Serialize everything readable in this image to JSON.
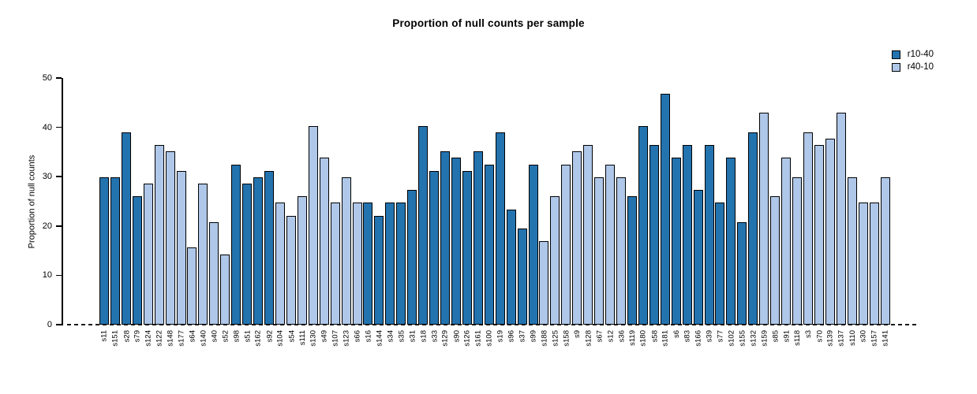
{
  "chart_data": {
    "type": "bar",
    "title": "Proportion of null counts per sample",
    "xlabel": "",
    "ylabel": "Proportion of null counts",
    "ylim": [
      0,
      50
    ],
    "yticks": [
      0,
      10,
      20,
      30,
      40,
      50
    ],
    "grid": false,
    "legend_position": "top-right",
    "zero_line_style": "dashed",
    "series": [
      {
        "name": "r10-40",
        "color": "#2373AF"
      },
      {
        "name": "r40-10",
        "color": "#AFC7E8"
      }
    ],
    "bars": [
      {
        "sample": "s11",
        "value": 29.9,
        "series": "r10-40"
      },
      {
        "sample": "s151",
        "value": 29.9,
        "series": "r10-40"
      },
      {
        "sample": "s28",
        "value": 39.0,
        "series": "r10-40"
      },
      {
        "sample": "s79",
        "value": 26.0,
        "series": "r10-40"
      },
      {
        "sample": "s124",
        "value": 28.6,
        "series": "r40-10"
      },
      {
        "sample": "s122",
        "value": 36.4,
        "series": "r40-10"
      },
      {
        "sample": "s148",
        "value": 35.1,
        "series": "r40-10"
      },
      {
        "sample": "s177",
        "value": 31.2,
        "series": "r40-10"
      },
      {
        "sample": "s64",
        "value": 15.6,
        "series": "r40-10"
      },
      {
        "sample": "s140",
        "value": 28.6,
        "series": "r40-10"
      },
      {
        "sample": "s40",
        "value": 20.8,
        "series": "r40-10"
      },
      {
        "sample": "s52",
        "value": 14.3,
        "series": "r40-10"
      },
      {
        "sample": "s98",
        "value": 32.5,
        "series": "r10-40"
      },
      {
        "sample": "s51",
        "value": 28.6,
        "series": "r10-40"
      },
      {
        "sample": "s162",
        "value": 29.9,
        "series": "r10-40"
      },
      {
        "sample": "s92",
        "value": 31.2,
        "series": "r10-40"
      },
      {
        "sample": "s104",
        "value": 24.7,
        "series": "r40-10"
      },
      {
        "sample": "s54",
        "value": 22.1,
        "series": "r40-10"
      },
      {
        "sample": "s111",
        "value": 26.0,
        "series": "r40-10"
      },
      {
        "sample": "s130",
        "value": 40.3,
        "series": "r40-10"
      },
      {
        "sample": "s49",
        "value": 33.8,
        "series": "r40-10"
      },
      {
        "sample": "s107",
        "value": 24.7,
        "series": "r40-10"
      },
      {
        "sample": "s123",
        "value": 29.9,
        "series": "r40-10"
      },
      {
        "sample": "s66",
        "value": 24.7,
        "series": "r40-10"
      },
      {
        "sample": "s16",
        "value": 24.7,
        "series": "r10-40"
      },
      {
        "sample": "s144",
        "value": 22.1,
        "series": "r10-40"
      },
      {
        "sample": "s34",
        "value": 24.7,
        "series": "r10-40"
      },
      {
        "sample": "s35",
        "value": 24.7,
        "series": "r10-40"
      },
      {
        "sample": "s31",
        "value": 27.3,
        "series": "r10-40"
      },
      {
        "sample": "s18",
        "value": 40.3,
        "series": "r10-40"
      },
      {
        "sample": "s33",
        "value": 31.2,
        "series": "r10-40"
      },
      {
        "sample": "s129",
        "value": 35.1,
        "series": "r10-40"
      },
      {
        "sample": "s90",
        "value": 33.8,
        "series": "r10-40"
      },
      {
        "sample": "s126",
        "value": 31.2,
        "series": "r10-40"
      },
      {
        "sample": "s161",
        "value": 35.1,
        "series": "r10-40"
      },
      {
        "sample": "s100",
        "value": 32.5,
        "series": "r10-40"
      },
      {
        "sample": "s19",
        "value": 39.0,
        "series": "r10-40"
      },
      {
        "sample": "s96",
        "value": 23.4,
        "series": "r10-40"
      },
      {
        "sample": "s37",
        "value": 19.5,
        "series": "r10-40"
      },
      {
        "sample": "s99",
        "value": 32.5,
        "series": "r10-40"
      },
      {
        "sample": "s188",
        "value": 16.9,
        "series": "r40-10"
      },
      {
        "sample": "s125",
        "value": 26.0,
        "series": "r40-10"
      },
      {
        "sample": "s158",
        "value": 32.5,
        "series": "r40-10"
      },
      {
        "sample": "s9",
        "value": 35.1,
        "series": "r40-10"
      },
      {
        "sample": "s128",
        "value": 36.4,
        "series": "r40-10"
      },
      {
        "sample": "s67",
        "value": 29.9,
        "series": "r40-10"
      },
      {
        "sample": "s12",
        "value": 32.5,
        "series": "r40-10"
      },
      {
        "sample": "s36",
        "value": 29.9,
        "series": "r40-10"
      },
      {
        "sample": "s119",
        "value": 26.0,
        "series": "r10-40"
      },
      {
        "sample": "s180",
        "value": 40.3,
        "series": "r10-40"
      },
      {
        "sample": "s58",
        "value": 36.4,
        "series": "r10-40"
      },
      {
        "sample": "s181",
        "value": 46.8,
        "series": "r10-40"
      },
      {
        "sample": "s6",
        "value": 33.8,
        "series": "r10-40"
      },
      {
        "sample": "s83",
        "value": 36.4,
        "series": "r10-40"
      },
      {
        "sample": "s166",
        "value": 27.3,
        "series": "r10-40"
      },
      {
        "sample": "s39",
        "value": 36.4,
        "series": "r10-40"
      },
      {
        "sample": "s77",
        "value": 24.7,
        "series": "r10-40"
      },
      {
        "sample": "s102",
        "value": 33.8,
        "series": "r10-40"
      },
      {
        "sample": "s155",
        "value": 20.8,
        "series": "r10-40"
      },
      {
        "sample": "s132",
        "value": 39.0,
        "series": "r10-40"
      },
      {
        "sample": "s159",
        "value": 42.9,
        "series": "r40-10"
      },
      {
        "sample": "s85",
        "value": 26.0,
        "series": "r40-10"
      },
      {
        "sample": "s91",
        "value": 33.8,
        "series": "r40-10"
      },
      {
        "sample": "s118",
        "value": 29.9,
        "series": "r40-10"
      },
      {
        "sample": "s3",
        "value": 39.0,
        "series": "r40-10"
      },
      {
        "sample": "s70",
        "value": 36.4,
        "series": "r40-10"
      },
      {
        "sample": "s139",
        "value": 37.7,
        "series": "r40-10"
      },
      {
        "sample": "s137",
        "value": 42.9,
        "series": "r40-10"
      },
      {
        "sample": "s110",
        "value": 29.9,
        "series": "r40-10"
      },
      {
        "sample": "s30",
        "value": 24.7,
        "series": "r40-10"
      },
      {
        "sample": "s157",
        "value": 24.7,
        "series": "r40-10"
      },
      {
        "sample": "s141",
        "value": 29.9,
        "series": "r40-10"
      }
    ]
  }
}
